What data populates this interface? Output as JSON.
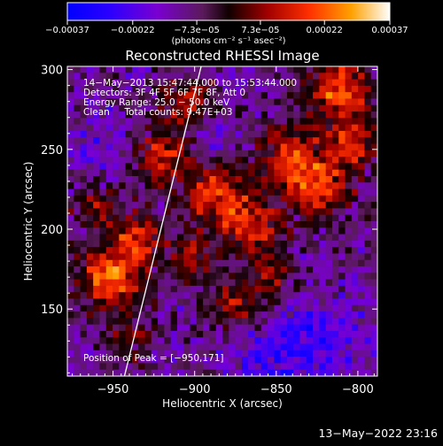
{
  "chart_data": {
    "type": "heatmap",
    "title": "Reconstructed RHESSI Image",
    "xlabel": "Heliocentric X (arcsec)",
    "ylabel": "Heliocentric Y (arcsec)",
    "xlim": [
      -978,
      -788
    ],
    "ylim": [
      108,
      302
    ],
    "xticks": [
      -950,
      -900,
      -850,
      -800
    ],
    "xtick_labels": [
      "−950",
      "−900",
      "−850",
      "−800"
    ],
    "yticks": [
      150,
      200,
      250,
      300
    ],
    "ytick_labels": [
      "150",
      "200",
      "250",
      "300"
    ],
    "colorbar": {
      "min": -0.00037,
      "max": 0.00037,
      "ticks": [
        -0.00037,
        -0.00022,
        -7.3e-05,
        7.3e-05,
        0.00022,
        0.00037
      ],
      "tick_labels": [
        "−0.00037",
        "−0.00022",
        "−7.3e−05",
        "7.3e−05",
        "0.00022",
        "0.00037"
      ],
      "units": "(photons cm⁻² s⁻¹ asec⁻²)"
    },
    "annotations": {
      "time_range": "14−May−2013 15:47:44.000 to 15:53:44.000",
      "detectors": "Detectors: 3F 4F 5F 6F 7F 8F, Att 0",
      "energy": "Energy Range: 25.0 − 50.0 keV",
      "algorithm": "Clean     Total counts: 9.47E+03",
      "peak": "Position of Peak = [−950,171]"
    },
    "peak": {
      "x": -950,
      "y": 171
    },
    "limb_line": [
      [
        -943,
        108
      ],
      [
        -896,
        302
      ]
    ],
    "image_grid": {
      "nx": 48,
      "ny": 48
    },
    "colors": {
      "background": "#000000",
      "text": "#ffffff"
    }
  },
  "footer": {
    "timestamp": "13−May−2022 23:16"
  }
}
